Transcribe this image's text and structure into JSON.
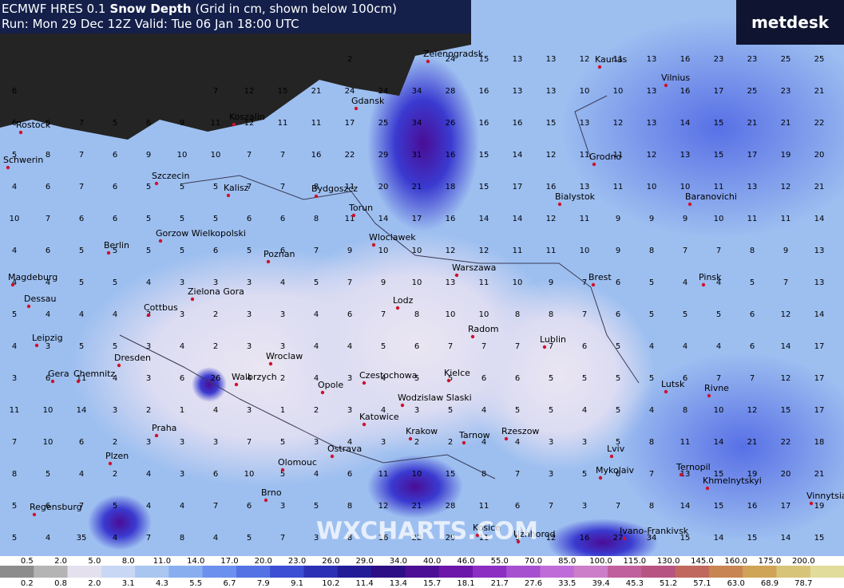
{
  "header": {
    "model": "ECMWF HRES 0.1",
    "parameter": "Snow Depth",
    "note": "(Grid in cm, shown below 100cm)",
    "run": "Run: Mon 29 Dec 12Z Valid: Tue 06 Jan 18:00 UTC"
  },
  "logo": "metdesk",
  "watermark": "WXCHARTS.COM",
  "cities": [
    "Rostock",
    "Schwerin",
    "Szczecin",
    "Koszalin",
    "Gdansk",
    "Zelenogradsk",
    "Kaunas",
    "Vilnius",
    "Kalisz",
    "Bydgoszcz",
    "Torun",
    "Grodno",
    "Bialystok",
    "Baranovichi",
    "Berlin",
    "Gorzow Wielkopolski",
    "Wloclawek",
    "Poznan",
    "Warszawa",
    "Magdeburg",
    "Brest",
    "Pinsk",
    "Dessau",
    "Zielona Gora",
    "Lodz",
    "Cottbus",
    "Radom",
    "Leipzig",
    "Lublin",
    "Dresden",
    "Wroclaw",
    "Gera",
    "Chemnitz",
    "Walbrzych",
    "Opole",
    "Czestochowa",
    "Kielce",
    "Wodzislaw Slaski",
    "Lutsk",
    "Rivne",
    "Katowice",
    "Praha",
    "Krakow",
    "Tarnow",
    "Rzeszow",
    "Ostrava",
    "Plzen",
    "Olomouc",
    "Lviv",
    "Ternopil",
    "Mykolaiv",
    "Khmelnytskyi",
    "Brno",
    "Regensburg",
    "Vinnytsia",
    "Kosice",
    "Uzhhorod",
    "Ivano-Frankivsk"
  ],
  "grid": {
    "rows": [
      [
        null,
        null,
        null,
        null,
        null,
        null,
        null,
        null,
        null,
        null,
        2,
        null,
        null,
        24,
        15,
        13,
        13,
        12,
        11,
        13,
        16,
        23,
        23,
        25,
        25
      ],
      [
        6,
        null,
        null,
        null,
        null,
        null,
        7,
        12,
        15,
        21,
        24,
        24,
        34,
        28,
        16,
        13,
        13,
        10,
        10,
        13,
        16,
        17,
        25,
        23,
        21
      ],
      [
        6,
        6,
        7,
        5,
        6,
        9,
        11,
        12,
        11,
        11,
        17,
        25,
        34,
        26,
        16,
        16,
        15,
        13,
        12,
        13,
        14,
        15,
        21,
        21,
        22
      ],
      [
        5,
        8,
        7,
        6,
        9,
        10,
        10,
        7,
        7,
        16,
        22,
        29,
        31,
        16,
        15,
        14,
        12,
        11,
        11,
        12,
        13,
        15,
        17,
        19,
        20
      ],
      [
        4,
        6,
        7,
        6,
        5,
        5,
        5,
        7,
        7,
        8,
        11,
        20,
        21,
        18,
        15,
        17,
        16,
        13,
        11,
        10,
        10,
        11,
        13,
        12,
        21
      ],
      [
        10,
        7,
        6,
        6,
        5,
        5,
        5,
        6,
        6,
        8,
        11,
        14,
        17,
        16,
        14,
        14,
        12,
        11,
        9,
        9,
        9,
        10,
        11,
        11,
        14
      ],
      [
        4,
        6,
        5,
        5,
        5,
        5,
        6,
        5,
        6,
        7,
        9,
        10,
        10,
        12,
        12,
        11,
        11,
        10,
        9,
        8,
        7,
        7,
        8,
        9,
        13
      ],
      [
        4,
        4,
        5,
        5,
        4,
        3,
        3,
        3,
        4,
        5,
        7,
        9,
        10,
        13,
        11,
        10,
        9,
        7,
        6,
        5,
        4,
        4,
        5,
        7,
        13
      ],
      [
        5,
        4,
        4,
        4,
        3,
        3,
        2,
        3,
        3,
        4,
        6,
        7,
        8,
        10,
        10,
        8,
        8,
        7,
        6,
        5,
        5,
        5,
        6,
        12,
        14
      ],
      [
        4,
        3,
        5,
        5,
        3,
        4,
        2,
        3,
        3,
        4,
        4,
        5,
        6,
        7,
        7,
        7,
        7,
        6,
        5,
        4,
        4,
        4,
        6,
        14,
        17
      ],
      [
        3,
        6,
        11,
        4,
        3,
        6,
        26,
        4,
        2,
        4,
        3,
        4,
        5,
        5,
        6,
        6,
        5,
        5,
        5,
        5,
        6,
        7,
        7,
        12,
        17
      ],
      [
        11,
        10,
        14,
        3,
        2,
        1,
        4,
        3,
        1,
        2,
        3,
        4,
        3,
        5,
        4,
        5,
        5,
        4,
        5,
        4,
        8,
        10,
        12,
        15,
        17
      ],
      [
        7,
        10,
        6,
        2,
        3,
        3,
        3,
        7,
        5,
        3,
        4,
        3,
        2,
        2,
        4,
        4,
        3,
        3,
        5,
        8,
        11,
        14,
        21,
        22,
        18
      ],
      [
        8,
        5,
        4,
        2,
        4,
        3,
        6,
        10,
        5,
        4,
        6,
        11,
        10,
        15,
        8,
        7,
        3,
        5,
        6,
        7,
        13,
        15,
        19,
        20,
        21
      ],
      [
        5,
        6,
        7,
        5,
        4,
        4,
        7,
        6,
        3,
        5,
        8,
        12,
        21,
        28,
        11,
        6,
        7,
        3,
        7,
        8,
        14,
        15,
        16,
        17,
        19
      ],
      [
        5,
        4,
        35,
        4,
        7,
        8,
        4,
        5,
        7,
        3,
        8,
        16,
        22,
        29,
        11,
        9,
        12,
        16,
        27,
        34,
        15,
        14,
        15,
        14,
        15
      ]
    ]
  },
  "colorbar": {
    "top_labels": [
      "0.5",
      "2.0",
      "5.0",
      "8.0",
      "11.0",
      "14.0",
      "17.0",
      "20.0",
      "23.0",
      "26.0",
      "29.0",
      "34.0",
      "40.0",
      "46.0",
      "55.0",
      "70.0",
      "85.0",
      "100.0",
      "115.0",
      "130.0",
      "145.0",
      "160.0",
      "175.0",
      "200.0"
    ],
    "bottom_labels": [
      "0.2",
      "0.8",
      "2.0",
      "3.1",
      "4.3",
      "5.5",
      "6.7",
      "7.9",
      "9.1",
      "10.2",
      "11.4",
      "13.4",
      "15.7",
      "18.1",
      "21.7",
      "27.6",
      "33.5",
      "39.4",
      "45.3",
      "51.2",
      "57.1",
      "63.0",
      "68.9",
      "78.7"
    ],
    "colors": [
      "#8c8c8c",
      "#b4b4b4",
      "#e4e0ee",
      "#c8d8f4",
      "#a8c6f0",
      "#88aef0",
      "#6c90ee",
      "#5472e4",
      "#3c4ed4",
      "#2c30b4",
      "#221c96",
      "#2e0e84",
      "#4c0e94",
      "#6c16aa",
      "#8c2ec2",
      "#a650d0",
      "#c06cd8",
      "#cc7ec8",
      "#c0609c",
      "#b85482",
      "#c0685e",
      "#c88452",
      "#d0a456",
      "#d8c478",
      "#e2dc9a"
    ]
  }
}
